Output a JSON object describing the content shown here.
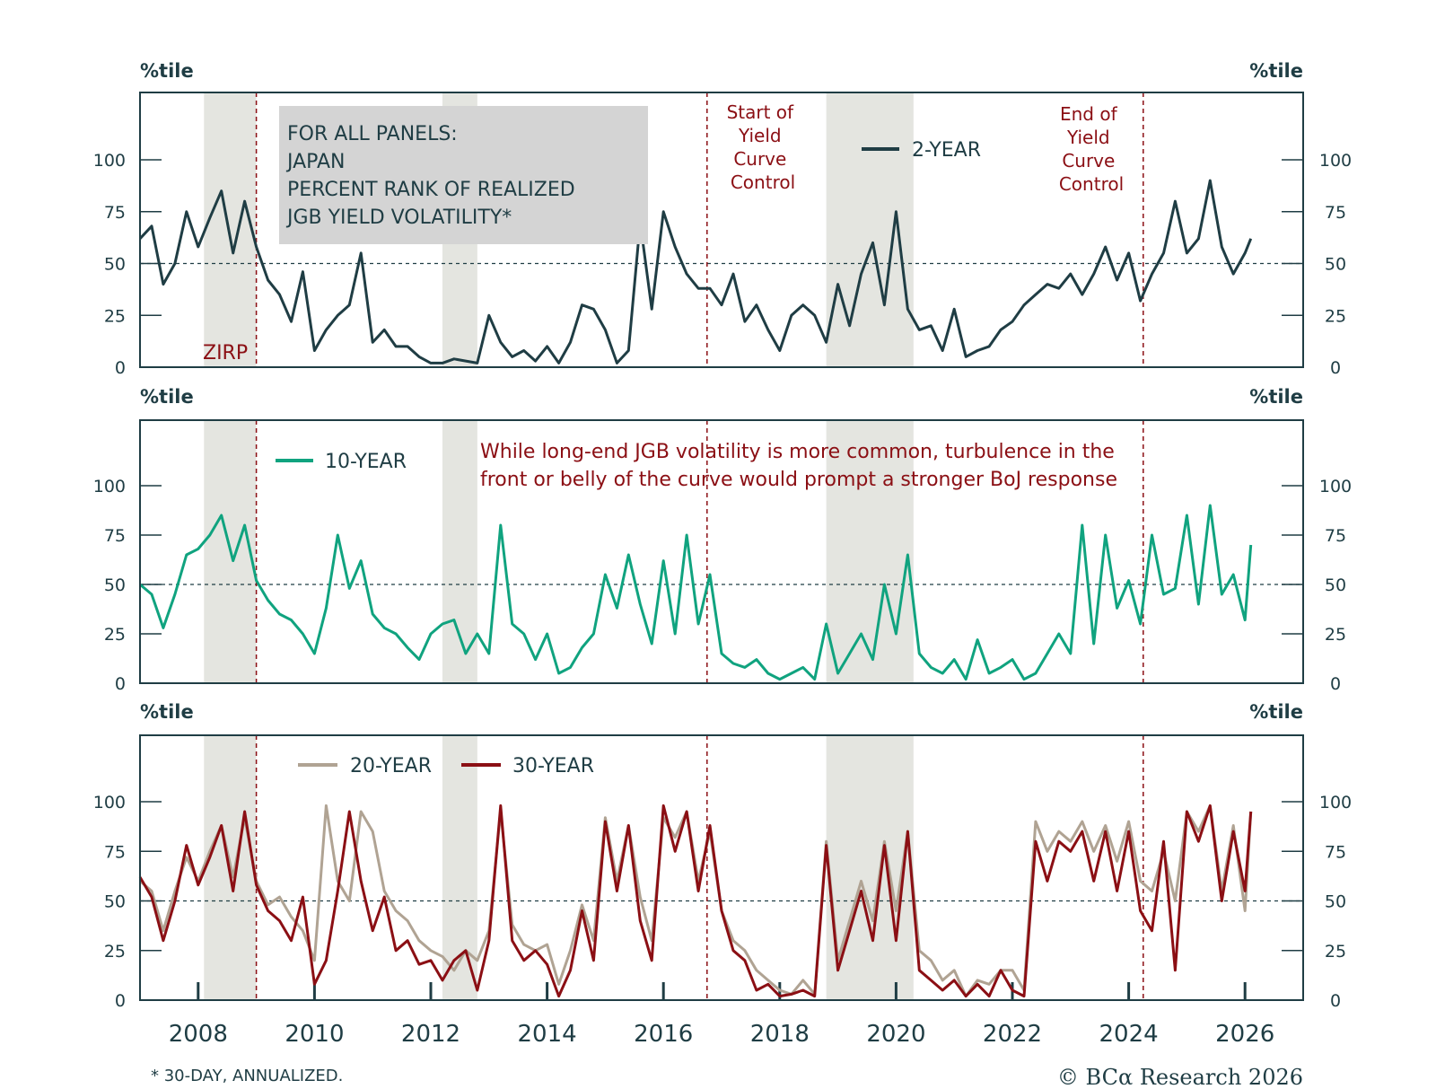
{
  "chart_data": {
    "type": "line",
    "x_unit": "year",
    "x_ticks": [
      2008,
      2010,
      2012,
      2014,
      2016,
      2018,
      2020,
      2022,
      2024,
      2026
    ],
    "x_tick_labels": [
      "2008",
      "2010",
      "2012",
      "2014",
      "2016",
      "2018",
      "2020",
      "2022",
      "2024",
      "2026"
    ],
    "xlim": [
      2007.0,
      2027.0
    ],
    "ylim": [
      0,
      130
    ],
    "y_ticks": [
      0,
      25,
      50,
      75,
      100
    ],
    "y_tick_labels": [
      "0",
      "25",
      "50",
      "75",
      "100"
    ],
    "axis_unit_label": "%tile",
    "reference_line": 50,
    "shaded_periods": [
      [
        2008.1,
        2009.0
      ],
      [
        2012.2,
        2012.8
      ],
      [
        2018.8,
        2020.3
      ]
    ],
    "event_lines": [
      {
        "x": 2009.0,
        "label": "ZIRP"
      },
      {
        "x": 2016.75,
        "label": "Start of Yield Curve Control"
      },
      {
        "x": 2024.25,
        "label": "End of Yield Curve Control"
      }
    ],
    "info_box": [
      "FOR ALL PANELS:",
      "JAPAN",
      "PERCENT RANK OF REALIZED",
      "JGB YIELD VOLATILITY*"
    ],
    "annotation_lines": [
      "While long-end JGB volatility is more common, turbulence in the",
      "front or belly of the curve would prompt a stronger BoJ response"
    ],
    "footnote": "* 30-DAY, ANNUALIZED.",
    "source": "© BCα Research 2026",
    "colors": {
      "two_year": "#1f3d44",
      "ten_year": "#10a37f",
      "twenty_year": "#b0a393",
      "thirty_year": "#8b0f14",
      "event": "#8b0f14",
      "shade": "#e4e5e0",
      "axis": "#1f3d44"
    },
    "panels": [
      {
        "series": [
          {
            "name": "2-YEAR",
            "x": [
              2007.0,
              2007.2,
              2007.4,
              2007.6,
              2007.8,
              2008.0,
              2008.2,
              2008.4,
              2008.6,
              2008.8,
              2009.0,
              2009.2,
              2009.4,
              2009.6,
              2009.8,
              2010.0,
              2010.2,
              2010.4,
              2010.6,
              2010.8,
              2011.0,
              2011.2,
              2011.4,
              2011.6,
              2011.8,
              2012.0,
              2012.2,
              2012.4,
              2012.6,
              2012.8,
              2013.0,
              2013.2,
              2013.4,
              2013.6,
              2013.8,
              2014.0,
              2014.2,
              2014.4,
              2014.6,
              2014.8,
              2015.0,
              2015.2,
              2015.4,
              2015.6,
              2015.8,
              2016.0,
              2016.2,
              2016.4,
              2016.6,
              2016.8,
              2017.0,
              2017.2,
              2017.4,
              2017.6,
              2017.8,
              2018.0,
              2018.2,
              2018.4,
              2018.6,
              2018.8,
              2019.0,
              2019.2,
              2019.4,
              2019.6,
              2019.8,
              2020.0,
              2020.2,
              2020.4,
              2020.6,
              2020.8,
              2021.0,
              2021.2,
              2021.4,
              2021.6,
              2021.8,
              2022.0,
              2022.2,
              2022.4,
              2022.6,
              2022.8,
              2023.0,
              2023.2,
              2023.4,
              2023.6,
              2023.8,
              2024.0,
              2024.2,
              2024.4,
              2024.6,
              2024.8,
              2025.0,
              2025.2,
              2025.4,
              2025.6,
              2025.8,
              2026.0,
              2026.1
            ],
            "values": [
              62,
              68,
              40,
              50,
              75,
              58,
              72,
              85,
              55,
              80,
              58,
              42,
              35,
              22,
              46,
              8,
              18,
              25,
              30,
              55,
              12,
              18,
              10,
              10,
              5,
              2,
              2,
              4,
              3,
              2,
              25,
              12,
              5,
              8,
              3,
              10,
              2,
              12,
              30,
              28,
              18,
              2,
              8,
              70,
              28,
              75,
              58,
              45,
              38,
              38,
              30,
              45,
              22,
              30,
              18,
              8,
              25,
              30,
              25,
              12,
              40,
              20,
              45,
              60,
              30,
              75,
              28,
              18,
              20,
              8,
              28,
              5,
              8,
              10,
              18,
              22,
              30,
              35,
              40,
              38,
              45,
              35,
              45,
              58,
              42,
              55,
              32,
              45,
              55,
              80,
              55,
              62,
              90,
              58,
              45,
              55,
              62
            ]
          }
        ]
      },
      {
        "series": [
          {
            "name": "10-YEAR",
            "x": [
              2007.0,
              2007.2,
              2007.4,
              2007.6,
              2007.8,
              2008.0,
              2008.2,
              2008.4,
              2008.6,
              2008.8,
              2009.0,
              2009.2,
              2009.4,
              2009.6,
              2009.8,
              2010.0,
              2010.2,
              2010.4,
              2010.6,
              2010.8,
              2011.0,
              2011.2,
              2011.4,
              2011.6,
              2011.8,
              2012.0,
              2012.2,
              2012.4,
              2012.6,
              2012.8,
              2013.0,
              2013.2,
              2013.4,
              2013.6,
              2013.8,
              2014.0,
              2014.2,
              2014.4,
              2014.6,
              2014.8,
              2015.0,
              2015.2,
              2015.4,
              2015.6,
              2015.8,
              2016.0,
              2016.2,
              2016.4,
              2016.6,
              2016.8,
              2017.0,
              2017.2,
              2017.4,
              2017.6,
              2017.8,
              2018.0,
              2018.2,
              2018.4,
              2018.6,
              2018.8,
              2019.0,
              2019.2,
              2019.4,
              2019.6,
              2019.8,
              2020.0,
              2020.2,
              2020.4,
              2020.6,
              2020.8,
              2021.0,
              2021.2,
              2021.4,
              2021.6,
              2021.8,
              2022.0,
              2022.2,
              2022.4,
              2022.6,
              2022.8,
              2023.0,
              2023.2,
              2023.4,
              2023.6,
              2023.8,
              2024.0,
              2024.2,
              2024.4,
              2024.6,
              2024.8,
              2025.0,
              2025.2,
              2025.4,
              2025.6,
              2025.8,
              2026.0,
              2026.1
            ],
            "values": [
              50,
              45,
              28,
              45,
              65,
              68,
              75,
              85,
              62,
              80,
              52,
              42,
              35,
              32,
              25,
              15,
              38,
              75,
              48,
              62,
              35,
              28,
              25,
              18,
              12,
              25,
              30,
              32,
              15,
              25,
              15,
              80,
              30,
              25,
              12,
              25,
              5,
              8,
              18,
              25,
              55,
              38,
              65,
              40,
              20,
              62,
              25,
              75,
              30,
              55,
              15,
              10,
              8,
              12,
              5,
              2,
              5,
              8,
              2,
              30,
              5,
              15,
              25,
              12,
              50,
              25,
              65,
              15,
              8,
              5,
              12,
              2,
              22,
              5,
              8,
              12,
              2,
              5,
              15,
              25,
              15,
              80,
              20,
              75,
              38,
              52,
              30,
              75,
              45,
              48,
              85,
              40,
              90,
              45,
              55,
              32,
              70
            ]
          }
        ]
      },
      {
        "series": [
          {
            "name": "20-YEAR",
            "x": [
              2007.0,
              2007.2,
              2007.4,
              2007.6,
              2007.8,
              2008.0,
              2008.2,
              2008.4,
              2008.6,
              2008.8,
              2009.0,
              2009.2,
              2009.4,
              2009.6,
              2009.8,
              2010.0,
              2010.2,
              2010.4,
              2010.6,
              2010.8,
              2011.0,
              2011.2,
              2011.4,
              2011.6,
              2011.8,
              2012.0,
              2012.2,
              2012.4,
              2012.6,
              2012.8,
              2013.0,
              2013.2,
              2013.4,
              2013.6,
              2013.8,
              2014.0,
              2014.2,
              2014.4,
              2014.6,
              2014.8,
              2015.0,
              2015.2,
              2015.4,
              2015.6,
              2015.8,
              2016.0,
              2016.2,
              2016.4,
              2016.6,
              2016.8,
              2017.0,
              2017.2,
              2017.4,
              2017.6,
              2017.8,
              2018.0,
              2018.2,
              2018.4,
              2018.6,
              2018.8,
              2019.0,
              2019.2,
              2019.4,
              2019.6,
              2019.8,
              2020.0,
              2020.2,
              2020.4,
              2020.6,
              2020.8,
              2021.0,
              2021.2,
              2021.4,
              2021.6,
              2021.8,
              2022.0,
              2022.2,
              2022.4,
              2022.6,
              2022.8,
              2023.0,
              2023.2,
              2023.4,
              2023.6,
              2023.8,
              2024.0,
              2024.2,
              2024.4,
              2024.6,
              2024.8,
              2025.0,
              2025.2,
              2025.4,
              2025.6,
              2025.8,
              2026.0,
              2026.1
            ],
            "values": [
              60,
              55,
              35,
              55,
              72,
              60,
              75,
              88,
              62,
              92,
              60,
              48,
              52,
              42,
              35,
              20,
              98,
              60,
              50,
              95,
              85,
              55,
              45,
              40,
              30,
              25,
              22,
              15,
              25,
              20,
              35,
              95,
              38,
              28,
              25,
              28,
              8,
              25,
              48,
              30,
              92,
              60,
              88,
              52,
              30,
              92,
              82,
              95,
              60,
              85,
              45,
              30,
              25,
              15,
              10,
              5,
              3,
              10,
              3,
              80,
              20,
              40,
              60,
              40,
              80,
              45,
              85,
              25,
              20,
              10,
              15,
              2,
              10,
              8,
              15,
              15,
              5,
              90,
              75,
              85,
              80,
              90,
              75,
              88,
              70,
              90,
              60,
              55,
              75,
              50,
              95,
              85,
              98,
              55,
              88,
              45,
              95
            ]
          },
          {
            "name": "30-YEAR",
            "x": [
              2007.0,
              2007.2,
              2007.4,
              2007.6,
              2007.8,
              2008.0,
              2008.2,
              2008.4,
              2008.6,
              2008.8,
              2009.0,
              2009.2,
              2009.4,
              2009.6,
              2009.8,
              2010.0,
              2010.2,
              2010.4,
              2010.6,
              2010.8,
              2011.0,
              2011.2,
              2011.4,
              2011.6,
              2011.8,
              2012.0,
              2012.2,
              2012.4,
              2012.6,
              2012.8,
              2013.0,
              2013.2,
              2013.4,
              2013.6,
              2013.8,
              2014.0,
              2014.2,
              2014.4,
              2014.6,
              2014.8,
              2015.0,
              2015.2,
              2015.4,
              2015.6,
              2015.8,
              2016.0,
              2016.2,
              2016.4,
              2016.6,
              2016.8,
              2017.0,
              2017.2,
              2017.4,
              2017.6,
              2017.8,
              2018.0,
              2018.2,
              2018.4,
              2018.6,
              2018.8,
              2019.0,
              2019.2,
              2019.4,
              2019.6,
              2019.8,
              2020.0,
              2020.2,
              2020.4,
              2020.6,
              2020.8,
              2021.0,
              2021.2,
              2021.4,
              2021.6,
              2021.8,
              2022.0,
              2022.2,
              2022.4,
              2022.6,
              2022.8,
              2023.0,
              2023.2,
              2023.4,
              2023.6,
              2023.8,
              2024.0,
              2024.2,
              2024.4,
              2024.6,
              2024.8,
              2025.0,
              2025.2,
              2025.4,
              2025.6,
              2025.8,
              2026.0,
              2026.1
            ],
            "values": [
              62,
              52,
              30,
              50,
              78,
              58,
              72,
              88,
              55,
              95,
              58,
              45,
              40,
              30,
              52,
              8,
              20,
              55,
              95,
              60,
              35,
              52,
              25,
              30,
              18,
              20,
              10,
              20,
              25,
              5,
              30,
              98,
              30,
              20,
              25,
              18,
              2,
              15,
              45,
              20,
              90,
              55,
              88,
              40,
              20,
              98,
              75,
              95,
              55,
              88,
              45,
              25,
              20,
              5,
              8,
              2,
              3,
              5,
              2,
              78,
              15,
              35,
              55,
              30,
              78,
              30,
              85,
              15,
              10,
              5,
              10,
              2,
              8,
              2,
              15,
              5,
              2,
              80,
              60,
              80,
              75,
              85,
              60,
              85,
              55,
              85,
              45,
              35,
              80,
              15,
              95,
              80,
              98,
              50,
              85,
              55,
              95
            ]
          }
        ]
      }
    ]
  },
  "legend": {
    "two_year": "2-YEAR",
    "ten_year": "10-YEAR",
    "twenty_year": "20-YEAR",
    "thirty_year": "30-YEAR"
  }
}
